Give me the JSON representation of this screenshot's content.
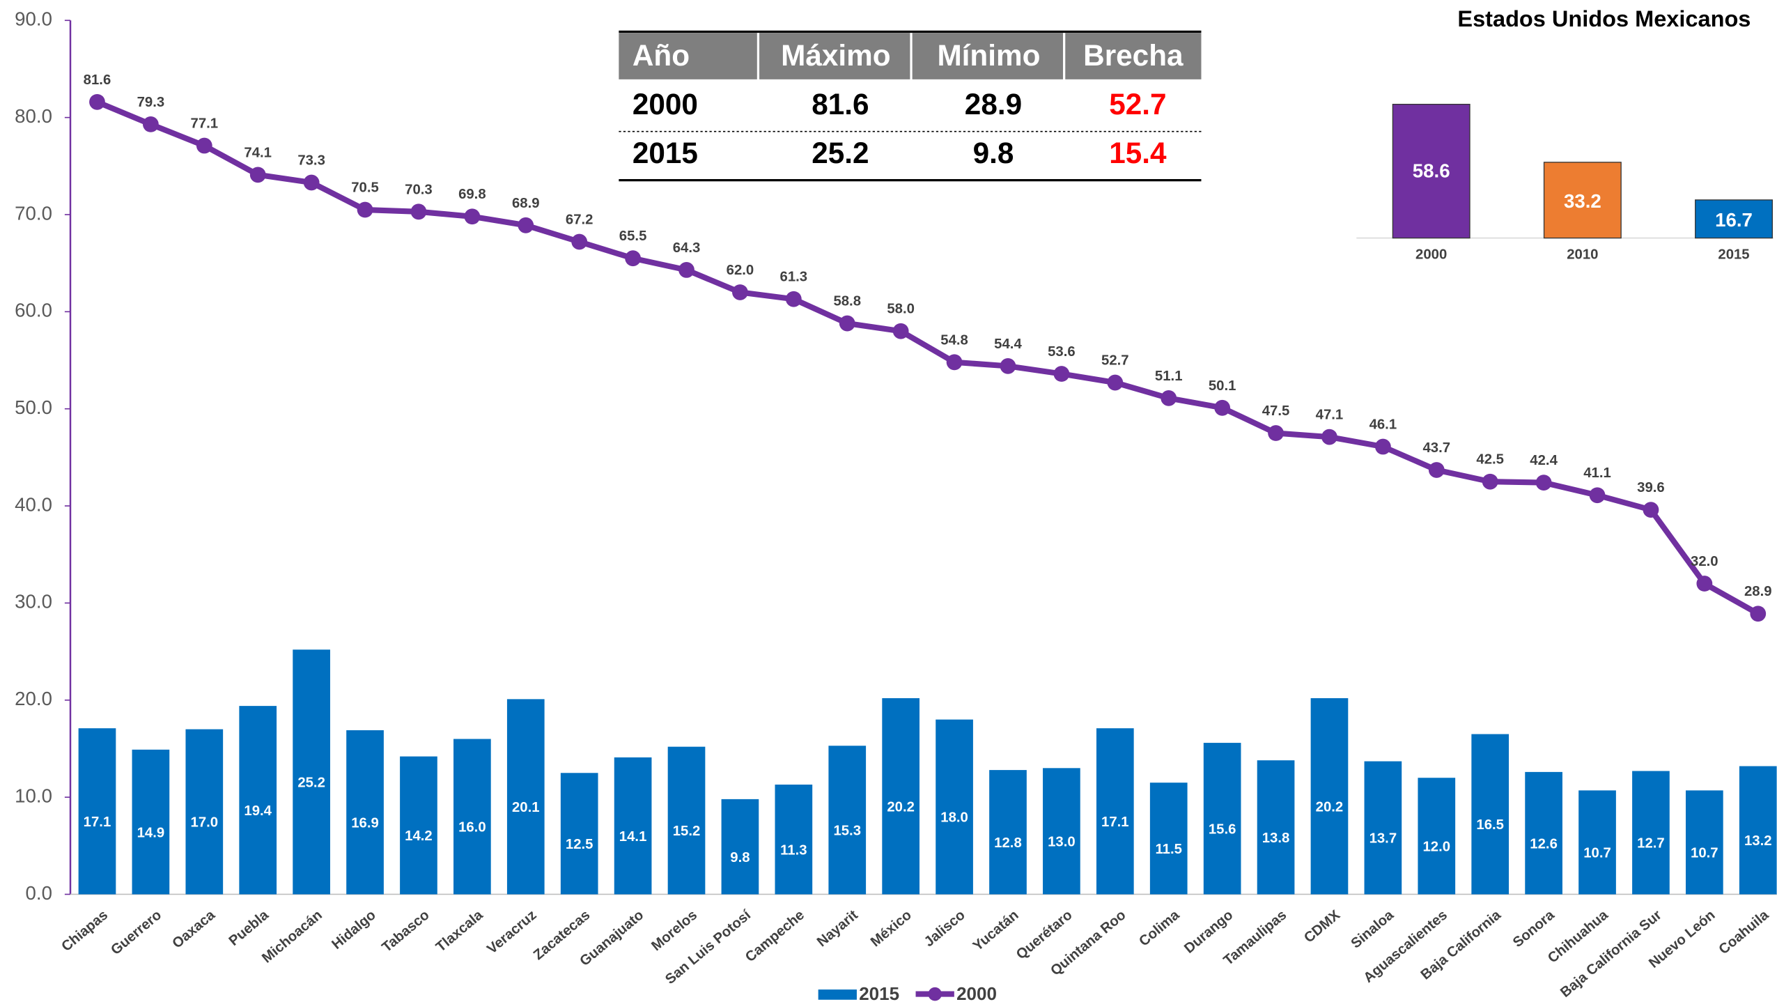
{
  "chart_data": [
    {
      "type": "combo",
      "categories": [
        "Chiapas",
        "Guerrero",
        "Oaxaca",
        "Puebla",
        "Michoacán",
        "Hidalgo",
        "Tabasco",
        "Tlaxcala",
        "Veracruz",
        "Zacatecas",
        "Guanajuato",
        "Morelos",
        "San Luis Potosí",
        "Campeche",
        "Nayarit",
        "México",
        "Jalisco",
        "Yucatán",
        "Querétaro",
        "Quintana Roo",
        "Colima",
        "Durango",
        "Tamaulipas",
        "CDMX",
        "Sinaloa",
        "Aguascalientes",
        "Baja California",
        "Sonora",
        "Chihuahua",
        "Baja California Sur",
        "Nuevo León",
        "Coahuila"
      ],
      "series": [
        {
          "name": "2015",
          "kind": "bar",
          "color": "#0070c0",
          "values": [
            17.1,
            14.9,
            17.0,
            19.4,
            25.2,
            16.9,
            14.2,
            16.0,
            20.1,
            12.5,
            14.1,
            15.2,
            9.8,
            11.3,
            15.3,
            20.2,
            18.0,
            12.8,
            13.0,
            17.1,
            11.5,
            15.6,
            13.8,
            20.2,
            13.7,
            12.0,
            16.5,
            12.6,
            10.7,
            12.7,
            10.7,
            13.2
          ],
          "value_labels": [
            "17.1",
            "14.9",
            "17.0",
            "19.4",
            "25.2",
            "16.9",
            "14.2",
            "16.0",
            "20.1",
            "12.5",
            "14.1",
            "15.2",
            "9.8",
            "11.3",
            "15.3",
            "20.2",
            "18.0",
            "12.8",
            "13.0",
            "17.1",
            "11.5",
            "15.6",
            "13.8",
            "20.2",
            "13.7",
            "12.0",
            "16.5",
            "12.6",
            "10.7",
            "12.7",
            "10.7",
            "13.2"
          ]
        },
        {
          "name": "2000",
          "kind": "line",
          "color": "#7030a0",
          "values": [
            81.6,
            79.3,
            77.1,
            74.1,
            73.3,
            70.5,
            70.3,
            69.8,
            68.9,
            67.2,
            65.5,
            64.3,
            62.0,
            61.3,
            58.8,
            58.0,
            54.8,
            54.4,
            53.6,
            52.7,
            51.1,
            50.1,
            47.5,
            47.1,
            46.1,
            43.7,
            42.5,
            42.4,
            41.1,
            39.6,
            32.0,
            28.9
          ],
          "value_labels": [
            "81.6",
            "79.3",
            "77.1",
            "74.1",
            "73.3",
            "70.5",
            "70.3",
            "69.8",
            "68.9",
            "67.2",
            "65.5",
            "64.3",
            "62.0",
            "61.3",
            "58.8",
            "58.0",
            "54.8",
            "54.4",
            "53.6",
            "52.7",
            "51.1",
            "50.1",
            "47.5",
            "47.1",
            "46.1",
            "43.7",
            "42.5",
            "42.4",
            "41.1",
            "39.6",
            "32.0",
            "28.9"
          ]
        }
      ],
      "ylim": [
        0,
        90
      ],
      "yticks": [
        {
          "value": 0,
          "label": "0.0"
        },
        {
          "value": 10,
          "label": "10.0"
        },
        {
          "value": 20,
          "label": "20.0"
        },
        {
          "value": 30,
          "label": "30.0"
        },
        {
          "value": 40,
          "label": "40.0"
        },
        {
          "value": 50,
          "label": "50.0"
        },
        {
          "value": 60,
          "label": "60.0"
        },
        {
          "value": 70,
          "label": "70.0"
        },
        {
          "value": 80,
          "label": "80.0"
        },
        {
          "value": 90,
          "label": "90.0"
        }
      ],
      "legend": "bottom"
    },
    {
      "type": "bar",
      "title": "Estados Unidos Mexicanos",
      "categories": [
        "2000",
        "2010",
        "2015"
      ],
      "values": [
        58.6,
        33.2,
        16.7
      ],
      "colors": [
        "#7030a0",
        "#ed7d31",
        "#0070c0"
      ]
    }
  ],
  "table": {
    "header": [
      "Año",
      "Máximo",
      "Mínimo",
      "Brecha"
    ],
    "rows": [
      [
        "2000",
        "81.6",
        "28.9",
        "52.7"
      ],
      [
        "2015",
        "25.2",
        "9.8",
        "15.4"
      ]
    ]
  }
}
